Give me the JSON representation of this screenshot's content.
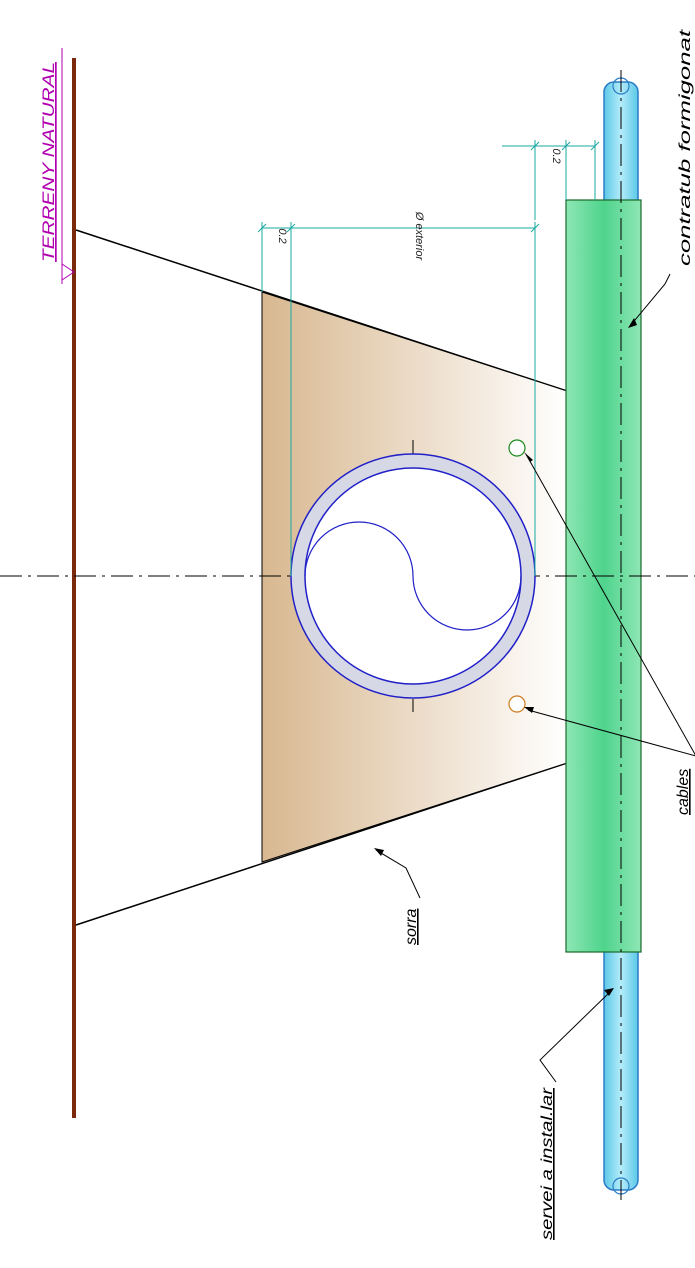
{
  "labels": {
    "terreny": "TERRENY NATURAL",
    "contratub": "contratub formigonat",
    "cables": "cables",
    "sorra": "sorra",
    "servei": "servei a instal.lar",
    "dim_ext": "Ø exterior",
    "dim_02_a": "0.2",
    "dim_02_b": "0.2"
  },
  "colors": {
    "ground_line": "#7a2a0a",
    "magenta": "#b000b0",
    "sand_dark": "#d8b890",
    "concrete": "#4fd48c",
    "pipe_blue": "#2020c8",
    "service_pipe": "#7ad8ee",
    "dim_line": "#1aa8a0",
    "cable_green": "#1a8a1a",
    "cable_orange": "#d07a1a"
  }
}
